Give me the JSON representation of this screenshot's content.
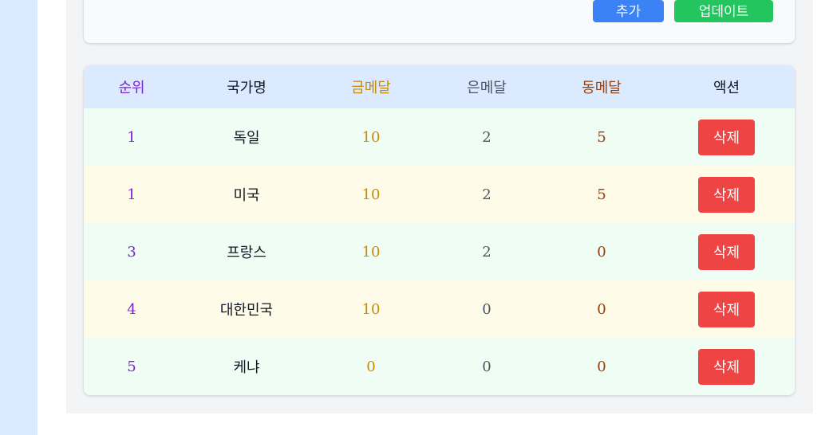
{
  "form": {
    "add_label": "추가",
    "update_label": "업데이트"
  },
  "table": {
    "headers": {
      "rank": "순위",
      "country": "국가명",
      "gold": "금메달",
      "silver": "은메달",
      "bronze": "동메달",
      "action": "액션"
    },
    "rows": [
      {
        "rank": "1",
        "country": "독일",
        "gold": "10",
        "silver": "2",
        "bronze": "5",
        "action": "삭제"
      },
      {
        "rank": "1",
        "country": "미국",
        "gold": "10",
        "silver": "2",
        "bronze": "5",
        "action": "삭제"
      },
      {
        "rank": "3",
        "country": "프랑스",
        "gold": "10",
        "silver": "2",
        "bronze": "0",
        "action": "삭제"
      },
      {
        "rank": "4",
        "country": "대한민국",
        "gold": "10",
        "silver": "0",
        "bronze": "0",
        "action": "삭제"
      },
      {
        "rank": "5",
        "country": "케냐",
        "gold": "0",
        "silver": "0",
        "bronze": "0",
        "action": "삭제"
      }
    ]
  },
  "colors": {
    "page_bg": "#dbeafe",
    "add_button": "#3b82f6",
    "update_button": "#22c55e",
    "delete_button": "#ef4444",
    "rank_text": "#7e22ce",
    "gold_text": "#ca8a04",
    "silver_text": "#4b5563",
    "bronze_text": "#92400e",
    "row_even_bg": "#f0fdf4",
    "row_odd_bg": "#fefce8"
  }
}
